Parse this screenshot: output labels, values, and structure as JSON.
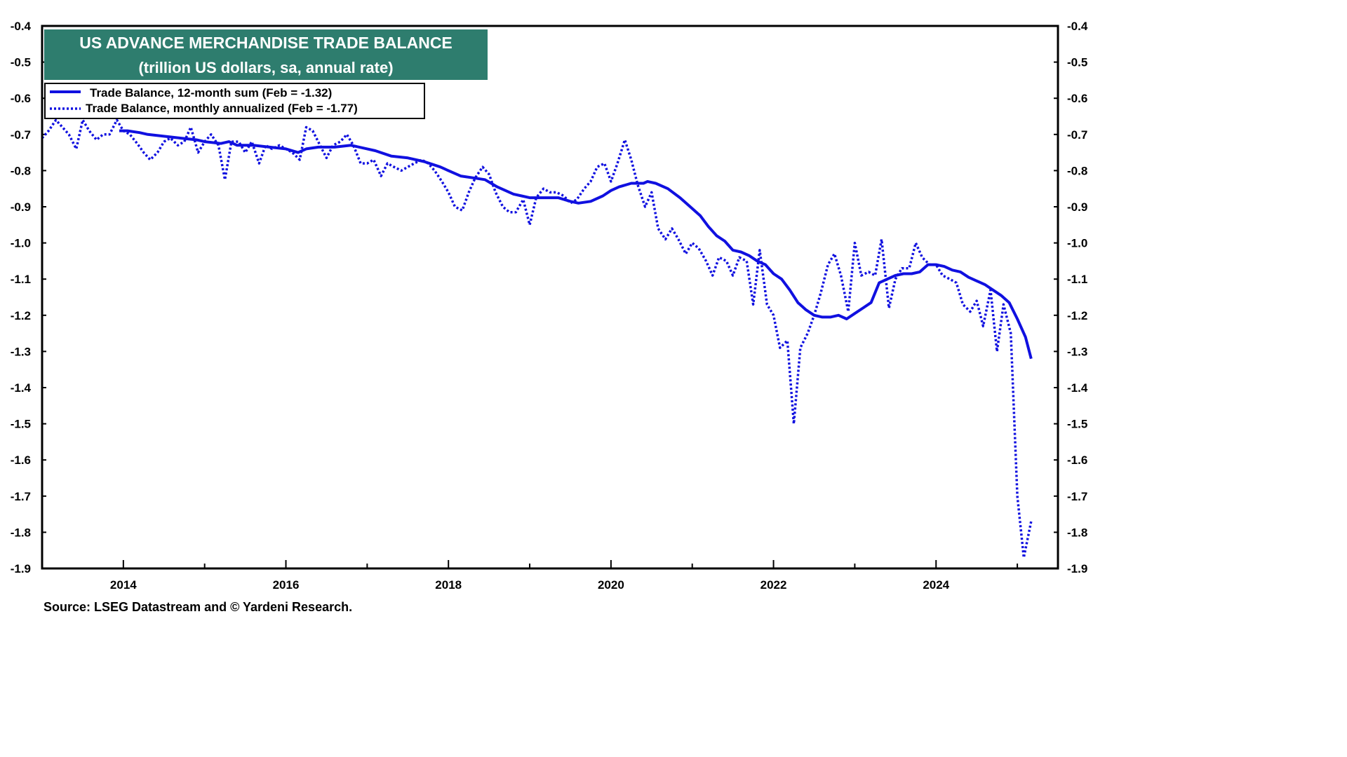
{
  "chart_data": {
    "type": "line",
    "title": "US ADVANCE MERCHANDISE TRADE BALANCE",
    "subtitle": "(trillion US dollars, sa, annual rate)",
    "source": "Source: LSEG Datastream and © Yardeni Research.",
    "ylim": [
      -1.9,
      -0.4
    ],
    "xlim": [
      2013.0,
      2025.5
    ],
    "y_ticks": [
      "-0.4",
      "-0.5",
      "-0.6",
      "-0.7",
      "-0.8",
      "-0.9",
      "-1.0",
      "-1.1",
      "-1.2",
      "-1.3",
      "-1.4",
      "-1.5",
      "-1.6",
      "-1.7",
      "-1.8",
      "-1.9"
    ],
    "x_ticks": [
      "2014",
      "2016",
      "2018",
      "2020",
      "2022",
      "2024"
    ],
    "grid": false,
    "legend_position": "top-left",
    "colors": {
      "title_bg": "#2e7d6e",
      "series": "#1010e0",
      "frame": "#000000"
    },
    "series": [
      {
        "name": "Trade Balance, 12-month sum (Feb = -1.32)",
        "style": "solid",
        "points": [
          [
            2013.95,
            -0.69
          ],
          [
            2014.05,
            -0.69
          ],
          [
            2014.2,
            -0.695
          ],
          [
            2014.3,
            -0.7
          ],
          [
            2014.5,
            -0.705
          ],
          [
            2014.7,
            -0.71
          ],
          [
            2014.9,
            -0.715
          ],
          [
            2015.0,
            -0.72
          ],
          [
            2015.2,
            -0.725
          ],
          [
            2015.3,
            -0.72
          ],
          [
            2015.4,
            -0.73
          ],
          [
            2015.6,
            -0.73
          ],
          [
            2015.8,
            -0.735
          ],
          [
            2016.0,
            -0.74
          ],
          [
            2016.15,
            -0.75
          ],
          [
            2016.25,
            -0.74
          ],
          [
            2016.4,
            -0.735
          ],
          [
            2016.6,
            -0.735
          ],
          [
            2016.8,
            -0.73
          ],
          [
            2017.0,
            -0.74
          ],
          [
            2017.1,
            -0.745
          ],
          [
            2017.3,
            -0.76
          ],
          [
            2017.5,
            -0.765
          ],
          [
            2017.7,
            -0.775
          ],
          [
            2017.9,
            -0.79
          ],
          [
            2018.0,
            -0.8
          ],
          [
            2018.15,
            -0.815
          ],
          [
            2018.3,
            -0.82
          ],
          [
            2018.45,
            -0.825
          ],
          [
            2018.6,
            -0.845
          ],
          [
            2018.8,
            -0.865
          ],
          [
            2018.9,
            -0.87
          ],
          [
            2019.0,
            -0.875
          ],
          [
            2019.2,
            -0.875
          ],
          [
            2019.35,
            -0.875
          ],
          [
            2019.5,
            -0.885
          ],
          [
            2019.6,
            -0.89
          ],
          [
            2019.75,
            -0.885
          ],
          [
            2019.9,
            -0.87
          ],
          [
            2020.0,
            -0.855
          ],
          [
            2020.1,
            -0.845
          ],
          [
            2020.25,
            -0.835
          ],
          [
            2020.4,
            -0.835
          ],
          [
            2020.45,
            -0.83
          ],
          [
            2020.55,
            -0.835
          ],
          [
            2020.7,
            -0.85
          ],
          [
            2020.85,
            -0.875
          ],
          [
            2020.95,
            -0.895
          ],
          [
            2021.1,
            -0.925
          ],
          [
            2021.2,
            -0.955
          ],
          [
            2021.3,
            -0.98
          ],
          [
            2021.4,
            -0.995
          ],
          [
            2021.5,
            -1.02
          ],
          [
            2021.6,
            -1.025
          ],
          [
            2021.7,
            -1.035
          ],
          [
            2021.8,
            -1.05
          ],
          [
            2021.9,
            -1.06
          ],
          [
            2022.0,
            -1.085
          ],
          [
            2022.1,
            -1.1
          ],
          [
            2022.2,
            -1.13
          ],
          [
            2022.3,
            -1.165
          ],
          [
            2022.4,
            -1.185
          ],
          [
            2022.5,
            -1.2
          ],
          [
            2022.6,
            -1.205
          ],
          [
            2022.7,
            -1.205
          ],
          [
            2022.8,
            -1.2
          ],
          [
            2022.9,
            -1.21
          ],
          [
            2023.0,
            -1.195
          ],
          [
            2023.1,
            -1.18
          ],
          [
            2023.2,
            -1.165
          ],
          [
            2023.3,
            -1.11
          ],
          [
            2023.4,
            -1.1
          ],
          [
            2023.5,
            -1.09
          ],
          [
            2023.6,
            -1.085
          ],
          [
            2023.7,
            -1.085
          ],
          [
            2023.8,
            -1.08
          ],
          [
            2023.9,
            -1.06
          ],
          [
            2024.0,
            -1.06
          ],
          [
            2024.1,
            -1.065
          ],
          [
            2024.2,
            -1.075
          ],
          [
            2024.3,
            -1.08
          ],
          [
            2024.4,
            -1.095
          ],
          [
            2024.5,
            -1.105
          ],
          [
            2024.6,
            -1.115
          ],
          [
            2024.7,
            -1.13
          ],
          [
            2024.8,
            -1.145
          ],
          [
            2024.9,
            -1.165
          ],
          [
            2025.0,
            -1.21
          ],
          [
            2025.1,
            -1.26
          ],
          [
            2025.17,
            -1.32
          ]
        ]
      },
      {
        "name": "Trade Balance, monthly annualized (Feb = -1.77)",
        "style": "dotted",
        "points": [
          [
            2013.0,
            -0.71
          ],
          [
            2013.08,
            -0.69
          ],
          [
            2013.17,
            -0.66
          ],
          [
            2013.25,
            -0.68
          ],
          [
            2013.33,
            -0.7
          ],
          [
            2013.42,
            -0.74
          ],
          [
            2013.5,
            -0.66
          ],
          [
            2013.58,
            -0.69
          ],
          [
            2013.67,
            -0.715
          ],
          [
            2013.75,
            -0.7
          ],
          [
            2013.83,
            -0.7
          ],
          [
            2013.92,
            -0.66
          ],
          [
            2014.0,
            -0.69
          ],
          [
            2014.08,
            -0.7
          ],
          [
            2014.17,
            -0.725
          ],
          [
            2014.25,
            -0.75
          ],
          [
            2014.33,
            -0.77
          ],
          [
            2014.42,
            -0.75
          ],
          [
            2014.5,
            -0.72
          ],
          [
            2014.58,
            -0.71
          ],
          [
            2014.67,
            -0.73
          ],
          [
            2014.75,
            -0.72
          ],
          [
            2014.83,
            -0.68
          ],
          [
            2014.92,
            -0.75
          ],
          [
            2015.0,
            -0.72
          ],
          [
            2015.08,
            -0.7
          ],
          [
            2015.17,
            -0.73
          ],
          [
            2015.25,
            -0.825
          ],
          [
            2015.33,
            -0.72
          ],
          [
            2015.42,
            -0.72
          ],
          [
            2015.5,
            -0.75
          ],
          [
            2015.58,
            -0.72
          ],
          [
            2015.67,
            -0.78
          ],
          [
            2015.75,
            -0.73
          ],
          [
            2015.83,
            -0.74
          ],
          [
            2015.92,
            -0.73
          ],
          [
            2016.0,
            -0.74
          ],
          [
            2016.08,
            -0.75
          ],
          [
            2016.17,
            -0.77
          ],
          [
            2016.25,
            -0.68
          ],
          [
            2016.33,
            -0.69
          ],
          [
            2016.42,
            -0.73
          ],
          [
            2016.5,
            -0.765
          ],
          [
            2016.58,
            -0.73
          ],
          [
            2016.67,
            -0.72
          ],
          [
            2016.75,
            -0.7
          ],
          [
            2016.83,
            -0.73
          ],
          [
            2016.92,
            -0.78
          ],
          [
            2017.0,
            -0.78
          ],
          [
            2017.08,
            -0.77
          ],
          [
            2017.17,
            -0.815
          ],
          [
            2017.25,
            -0.78
          ],
          [
            2017.33,
            -0.79
          ],
          [
            2017.42,
            -0.8
          ],
          [
            2017.5,
            -0.79
          ],
          [
            2017.58,
            -0.78
          ],
          [
            2017.67,
            -0.77
          ],
          [
            2017.75,
            -0.78
          ],
          [
            2017.83,
            -0.8
          ],
          [
            2017.92,
            -0.83
          ],
          [
            2018.0,
            -0.86
          ],
          [
            2018.08,
            -0.9
          ],
          [
            2018.17,
            -0.91
          ],
          [
            2018.25,
            -0.86
          ],
          [
            2018.33,
            -0.82
          ],
          [
            2018.42,
            -0.79
          ],
          [
            2018.5,
            -0.81
          ],
          [
            2018.58,
            -0.86
          ],
          [
            2018.67,
            -0.9
          ],
          [
            2018.75,
            -0.915
          ],
          [
            2018.83,
            -0.915
          ],
          [
            2018.92,
            -0.88
          ],
          [
            2019.0,
            -0.95
          ],
          [
            2019.08,
            -0.875
          ],
          [
            2019.17,
            -0.85
          ],
          [
            2019.25,
            -0.86
          ],
          [
            2019.33,
            -0.86
          ],
          [
            2019.42,
            -0.87
          ],
          [
            2019.5,
            -0.89
          ],
          [
            2019.58,
            -0.88
          ],
          [
            2019.67,
            -0.85
          ],
          [
            2019.75,
            -0.83
          ],
          [
            2019.83,
            -0.79
          ],
          [
            2019.92,
            -0.78
          ],
          [
            2020.0,
            -0.83
          ],
          [
            2020.08,
            -0.78
          ],
          [
            2020.17,
            -0.715
          ],
          [
            2020.25,
            -0.77
          ],
          [
            2020.33,
            -0.84
          ],
          [
            2020.42,
            -0.9
          ],
          [
            2020.5,
            -0.86
          ],
          [
            2020.58,
            -0.96
          ],
          [
            2020.67,
            -0.99
          ],
          [
            2020.75,
            -0.96
          ],
          [
            2020.83,
            -0.99
          ],
          [
            2020.92,
            -1.03
          ],
          [
            2021.0,
            -1.0
          ],
          [
            2021.08,
            -1.015
          ],
          [
            2021.17,
            -1.05
          ],
          [
            2021.25,
            -1.09
          ],
          [
            2021.33,
            -1.04
          ],
          [
            2021.42,
            -1.05
          ],
          [
            2021.5,
            -1.09
          ],
          [
            2021.58,
            -1.04
          ],
          [
            2021.67,
            -1.05
          ],
          [
            2021.75,
            -1.17
          ],
          [
            2021.83,
            -1.02
          ],
          [
            2021.92,
            -1.17
          ],
          [
            2022.0,
            -1.2
          ],
          [
            2022.08,
            -1.29
          ],
          [
            2022.17,
            -1.27
          ],
          [
            2022.25,
            -1.5
          ],
          [
            2022.33,
            -1.29
          ],
          [
            2022.42,
            -1.25
          ],
          [
            2022.5,
            -1.2
          ],
          [
            2022.58,
            -1.14
          ],
          [
            2022.67,
            -1.06
          ],
          [
            2022.75,
            -1.03
          ],
          [
            2022.83,
            -1.09
          ],
          [
            2022.92,
            -1.19
          ],
          [
            2023.0,
            -1.0
          ],
          [
            2023.08,
            -1.09
          ],
          [
            2023.17,
            -1.08
          ],
          [
            2023.25,
            -1.09
          ],
          [
            2023.33,
            -0.99
          ],
          [
            2023.42,
            -1.18
          ],
          [
            2023.5,
            -1.1
          ],
          [
            2023.58,
            -1.07
          ],
          [
            2023.67,
            -1.07
          ],
          [
            2023.75,
            -1.0
          ],
          [
            2023.83,
            -1.04
          ],
          [
            2023.92,
            -1.06
          ],
          [
            2024.0,
            -1.06
          ],
          [
            2024.08,
            -1.09
          ],
          [
            2024.17,
            -1.1
          ],
          [
            2024.25,
            -1.11
          ],
          [
            2024.33,
            -1.17
          ],
          [
            2024.42,
            -1.19
          ],
          [
            2024.5,
            -1.16
          ],
          [
            2024.58,
            -1.23
          ],
          [
            2024.67,
            -1.13
          ],
          [
            2024.75,
            -1.3
          ],
          [
            2024.83,
            -1.17
          ],
          [
            2024.92,
            -1.25
          ],
          [
            2025.0,
            -1.7
          ],
          [
            2025.08,
            -1.87
          ],
          [
            2025.17,
            -1.77
          ]
        ]
      }
    ]
  }
}
